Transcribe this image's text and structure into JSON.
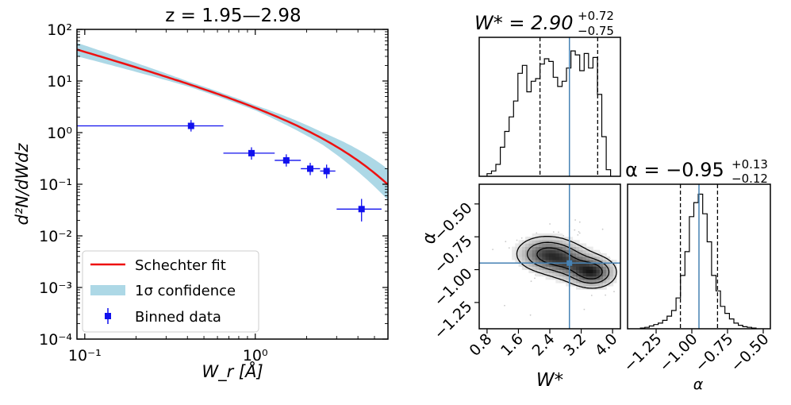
{
  "chart_data": [
    {
      "type": "line",
      "title": "z = 1.95—2.98",
      "xlabel": "W_r [Å]",
      "ylabel": "d²N/dWdz",
      "x_scale": "log",
      "y_scale": "log",
      "xlim": [
        0.09,
        6.0
      ],
      "ylim": [
        0.0001,
        100
      ],
      "x_ticks": [
        {
          "value": 0.1,
          "label": "10⁻¹"
        },
        {
          "value": 1,
          "label": "10⁰"
        }
      ],
      "y_ticks": [
        {
          "value": 0.0001,
          "label": "10⁻⁴"
        },
        {
          "value": 0.001,
          "label": "10⁻³"
        },
        {
          "value": 0.01,
          "label": "10⁻²"
        },
        {
          "value": 0.1,
          "label": "10⁻¹"
        },
        {
          "value": 1,
          "label": "10⁰"
        },
        {
          "value": 10,
          "label": "10¹"
        },
        {
          "value": 100,
          "label": "10²"
        }
      ],
      "legend_position": "lower-left",
      "legend": [
        "Schechter fit",
        "1σ confidence",
        "Binned data"
      ],
      "fit": {
        "W_star": 2.9,
        "alpha": -0.95,
        "norm": 1.55
      },
      "band_sigma_dex": [
        0.13,
        0.05,
        0.05,
        0.12,
        0.3
      ],
      "band_sigma_at_x": [
        0.09,
        0.4,
        1.0,
        2.5,
        6.0
      ],
      "binned_data": [
        {
          "x": 0.42,
          "y": 1.35,
          "x_lo": 0.09,
          "x_hi": 0.65,
          "y_lo": 1.05,
          "y_hi": 1.75
        },
        {
          "x": 0.95,
          "y": 0.4,
          "x_lo": 0.65,
          "x_hi": 1.3,
          "y_lo": 0.3,
          "y_hi": 0.52
        },
        {
          "x": 1.52,
          "y": 0.29,
          "x_lo": 1.3,
          "x_hi": 1.85,
          "y_lo": 0.22,
          "y_hi": 0.38
        },
        {
          "x": 2.1,
          "y": 0.2,
          "x_lo": 1.85,
          "x_hi": 2.4,
          "y_lo": 0.15,
          "y_hi": 0.26
        },
        {
          "x": 2.62,
          "y": 0.18,
          "x_lo": 2.4,
          "x_hi": 2.95,
          "y_lo": 0.13,
          "y_hi": 0.24
        },
        {
          "x": 4.2,
          "y": 0.033,
          "x_lo": 3.0,
          "x_hi": 5.5,
          "y_lo": 0.019,
          "y_hi": 0.052
        }
      ]
    },
    {
      "type": "histogram",
      "title": "W* = 2.90 +0.72 −0.75",
      "title_main": "W* = 2.90",
      "title_sup": "+0.72",
      "title_sub": "−0.75",
      "xlim": [
        0.6,
        4.2
      ],
      "bins": 28,
      "counts": [
        0.02,
        0.04,
        0.09,
        0.22,
        0.34,
        0.45,
        0.57,
        0.78,
        0.84,
        0.64,
        0.72,
        0.74,
        0.85,
        0.89,
        0.87,
        0.75,
        0.68,
        0.72,
        0.82,
        0.95,
        0.92,
        0.8,
        0.93,
        0.82,
        0.9,
        0.62,
        0.3,
        0.05
      ],
      "median": 2.9,
      "quantiles": [
        2.15,
        3.62
      ]
    },
    {
      "type": "heatmap",
      "xlabel": "W*",
      "ylabel": "α",
      "xlim": [
        0.6,
        4.2
      ],
      "ylim": [
        -1.45,
        -0.35
      ],
      "x_ticks": [
        0.8,
        1.6,
        2.4,
        3.2,
        4.0
      ],
      "x_tick_labels": [
        "0.8",
        "1.6",
        "2.4",
        "3.2",
        "4.0"
      ],
      "y_ticks": [
        -0.5,
        -0.75,
        -1.0,
        -1.25
      ],
      "y_tick_labels": [
        "−0.50",
        "−0.75",
        "−1.00",
        "−1.25"
      ],
      "truth": {
        "x": 2.9,
        "y": -0.95
      },
      "modes": [
        {
          "x": 2.3,
          "y": -0.88,
          "sx": 0.45,
          "sy": 0.08,
          "w": 0.9
        },
        {
          "x": 3.5,
          "y": -1.02,
          "sx": 0.35,
          "sy": 0.07,
          "w": 1.0
        },
        {
          "x": 2.9,
          "y": -0.95,
          "sx": 0.4,
          "sy": 0.08,
          "w": 0.6
        }
      ],
      "contour_levels": [
        0.72,
        0.45,
        0.2
      ]
    },
    {
      "type": "histogram",
      "title": "α = −0.95 +0.13 −0.12",
      "title_main": "α = −0.95",
      "title_sup": "+0.13",
      "title_sub": "−0.12",
      "xlabel": "α",
      "xlim": [
        -1.45,
        -0.45
      ],
      "x_ticks": [
        -1.25,
        -1.0,
        -0.75,
        -0.5
      ],
      "x_tick_labels": [
        "−1.25",
        "−1.00",
        "−0.75",
        "−0.50"
      ],
      "bins": 26,
      "counts": [
        0.005,
        0.01,
        0.02,
        0.03,
        0.04,
        0.06,
        0.09,
        0.13,
        0.22,
        0.38,
        0.55,
        0.8,
        0.9,
        0.96,
        0.82,
        0.62,
        0.38,
        0.27,
        0.16,
        0.11,
        0.07,
        0.04,
        0.025,
        0.015,
        0.01,
        0.005
      ],
      "median": -0.95,
      "quantiles": [
        -1.08,
        -0.82
      ]
    }
  ],
  "colors": {
    "fit": "#ee1111",
    "band": "#add8e6",
    "data": "#1111ee",
    "truth": "#4682b4",
    "ink": "#000000"
  }
}
